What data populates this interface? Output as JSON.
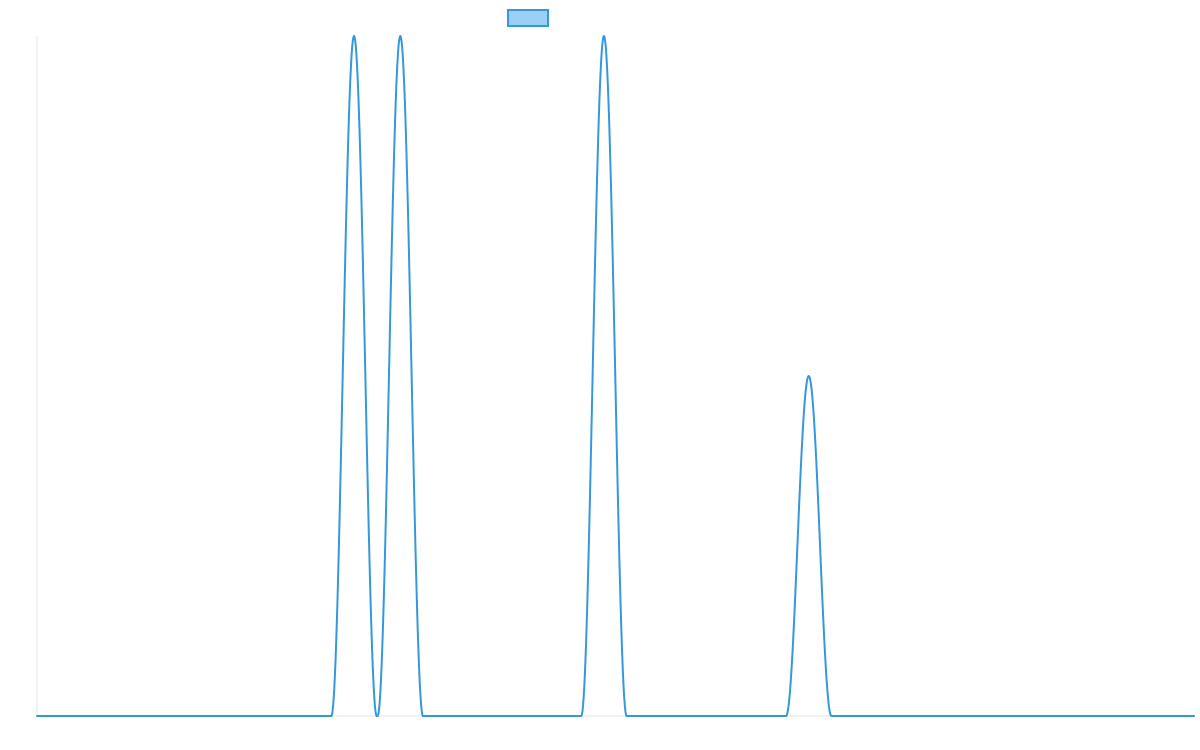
{
  "chart_data": {
    "type": "line",
    "title": "",
    "xlabel": "",
    "ylabel": "",
    "xlim": [
      0,
      100
    ],
    "ylim": [
      0,
      1
    ],
    "grid": false,
    "legend": "top-center",
    "line_color": "#3498db",
    "legend_fill": "#9ad0f5",
    "series": [
      {
        "name": "",
        "peaks": [
          {
            "center": 27.4,
            "height": 1.0,
            "halfwidth": 1.96
          },
          {
            "center": 31.4,
            "height": 1.0,
            "halfwidth": 1.96
          },
          {
            "center": 49.0,
            "height": 1.0,
            "halfwidth": 1.96
          },
          {
            "center": 66.7,
            "height": 0.5,
            "halfwidth": 1.96
          }
        ]
      }
    ]
  }
}
